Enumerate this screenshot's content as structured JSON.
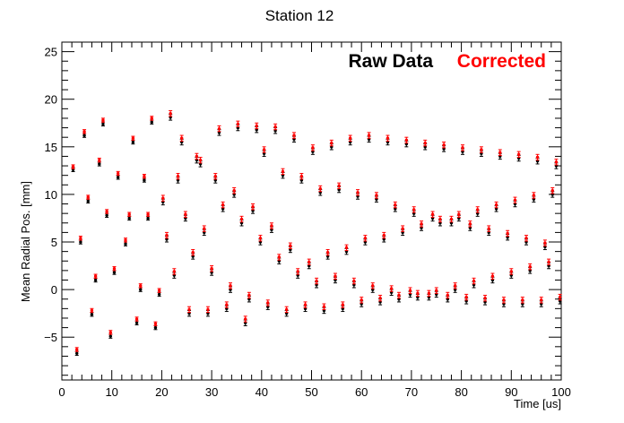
{
  "chart_data": {
    "type": "scatter",
    "title": "Station 12",
    "xlabel": "Time [us]",
    "ylabel": "Mean Radial Pos. [mm]",
    "xlim": [
      0,
      100
    ],
    "ylim": [
      -9.5,
      26
    ],
    "x_ticks": [
      0,
      10,
      20,
      30,
      40,
      50,
      60,
      70,
      80,
      90,
      100
    ],
    "y_ticks": [
      -5,
      0,
      5,
      10,
      15,
      20,
      25
    ],
    "grid": false,
    "legend_position": "top-right",
    "period_us": 1.5,
    "series": [
      {
        "name": "Raw Data",
        "color": "#000000",
        "points": [
          [
            2.25,
            12.6
          ],
          [
            3.0,
            -6.7
          ],
          [
            3.75,
            5.0
          ],
          [
            4.5,
            16.2
          ],
          [
            5.25,
            9.3
          ],
          [
            6.0,
            -2.6
          ],
          [
            6.75,
            1.0
          ],
          [
            7.5,
            13.2
          ],
          [
            8.25,
            17.4
          ],
          [
            9.0,
            7.8
          ],
          [
            9.75,
            -4.9
          ],
          [
            10.5,
            1.8
          ],
          [
            11.25,
            11.8
          ],
          [
            12.75,
            4.8
          ],
          [
            13.5,
            7.5
          ],
          [
            14.25,
            15.5
          ],
          [
            15.0,
            -3.5
          ],
          [
            15.75,
            0.0
          ],
          [
            16.5,
            11.5
          ],
          [
            17.25,
            7.5
          ],
          [
            18.0,
            17.6
          ],
          [
            18.75,
            -4.0
          ],
          [
            19.5,
            -0.5
          ],
          [
            20.25,
            9.2
          ],
          [
            21.0,
            5.3
          ],
          [
            21.75,
            18.1
          ],
          [
            22.5,
            1.5
          ],
          [
            23.25,
            11.5
          ],
          [
            24.0,
            15.5
          ],
          [
            24.75,
            7.5
          ],
          [
            25.5,
            -2.5
          ],
          [
            26.25,
            3.5
          ],
          [
            27.0,
            13.6
          ],
          [
            27.75,
            13.2
          ],
          [
            28.5,
            6.0
          ],
          [
            29.25,
            -2.5
          ],
          [
            30.0,
            1.8
          ],
          [
            30.75,
            11.5
          ],
          [
            31.5,
            16.5
          ],
          [
            32.25,
            8.5
          ],
          [
            33.0,
            -2.0
          ],
          [
            33.75,
            0.0
          ],
          [
            34.5,
            10.0
          ],
          [
            35.25,
            17.0
          ],
          [
            36.0,
            7.0
          ],
          [
            36.75,
            -3.5
          ],
          [
            37.5,
            -1.0
          ],
          [
            38.25,
            8.3
          ],
          [
            39.0,
            16.8
          ],
          [
            39.75,
            5.0
          ],
          [
            40.5,
            14.3
          ],
          [
            41.25,
            -1.8
          ],
          [
            42.0,
            6.3
          ],
          [
            42.75,
            16.7
          ],
          [
            43.5,
            3.0
          ],
          [
            44.25,
            12.0
          ],
          [
            45.0,
            -2.5
          ],
          [
            45.75,
            4.2
          ],
          [
            46.5,
            15.8
          ],
          [
            47.25,
            1.5
          ],
          [
            48.0,
            11.5
          ],
          [
            48.75,
            -2.0
          ],
          [
            49.5,
            2.5
          ],
          [
            50.25,
            14.5
          ],
          [
            51.0,
            0.5
          ],
          [
            51.75,
            10.2
          ],
          [
            52.5,
            -2.2
          ],
          [
            53.25,
            3.5
          ],
          [
            54.0,
            15.0
          ],
          [
            54.75,
            1.0
          ],
          [
            55.5,
            10.5
          ],
          [
            56.25,
            -2.0
          ],
          [
            57.0,
            4.0
          ],
          [
            57.75,
            15.5
          ],
          [
            58.5,
            0.5
          ],
          [
            59.25,
            9.8
          ],
          [
            60.0,
            -1.5
          ],
          [
            60.75,
            5.0
          ],
          [
            61.5,
            15.8
          ],
          [
            62.25,
            0.0
          ],
          [
            63.0,
            9.5
          ],
          [
            63.75,
            -1.3
          ],
          [
            64.5,
            5.3
          ],
          [
            65.25,
            15.5
          ],
          [
            66.0,
            -0.3
          ],
          [
            66.75,
            8.5
          ],
          [
            67.5,
            -1.0
          ],
          [
            68.25,
            6.0
          ],
          [
            69.0,
            15.3
          ],
          [
            69.75,
            -0.5
          ],
          [
            70.5,
            8.0
          ],
          [
            71.25,
            -0.8
          ],
          [
            72.0,
            6.5
          ],
          [
            72.75,
            15.0
          ],
          [
            73.5,
            -0.8
          ],
          [
            74.25,
            7.5
          ],
          [
            75.0,
            -0.5
          ],
          [
            75.75,
            7.0
          ],
          [
            76.5,
            14.8
          ],
          [
            77.25,
            -1.0
          ],
          [
            78.0,
            7.0
          ],
          [
            78.75,
            0.0
          ],
          [
            79.5,
            7.5
          ],
          [
            80.25,
            14.5
          ],
          [
            81.0,
            -1.2
          ],
          [
            81.75,
            6.5
          ],
          [
            82.5,
            0.5
          ],
          [
            83.25,
            8.0
          ],
          [
            84.0,
            14.3
          ],
          [
            84.75,
            -1.3
          ],
          [
            85.5,
            6.0
          ],
          [
            86.25,
            1.0
          ],
          [
            87.0,
            8.5
          ],
          [
            87.75,
            14.0
          ],
          [
            88.5,
            -1.5
          ],
          [
            89.25,
            5.5
          ],
          [
            90.0,
            1.5
          ],
          [
            90.75,
            9.0
          ],
          [
            91.5,
            13.8
          ],
          [
            92.25,
            -1.5
          ],
          [
            93.0,
            5.0
          ],
          [
            93.75,
            2.0
          ],
          [
            94.5,
            9.5
          ],
          [
            95.25,
            13.5
          ],
          [
            96.0,
            -1.5
          ],
          [
            96.75,
            4.5
          ],
          [
            97.5,
            2.5
          ],
          [
            98.25,
            10.0
          ],
          [
            99.0,
            13.0
          ],
          [
            99.75,
            -1.2
          ]
        ]
      },
      {
        "name": "Corrected",
        "color": "#ff0000",
        "points": [
          [
            2.25,
            12.9
          ],
          [
            3.0,
            -6.3
          ],
          [
            3.75,
            5.4
          ],
          [
            4.5,
            16.6
          ],
          [
            5.25,
            9.7
          ],
          [
            6.0,
            -2.2
          ],
          [
            6.75,
            1.4
          ],
          [
            7.5,
            13.6
          ],
          [
            8.25,
            17.8
          ],
          [
            9.0,
            8.2
          ],
          [
            9.75,
            -4.5
          ],
          [
            10.5,
            2.2
          ],
          [
            11.25,
            12.2
          ],
          [
            12.75,
            5.2
          ],
          [
            13.5,
            7.9
          ],
          [
            14.25,
            15.9
          ],
          [
            15.0,
            -3.1
          ],
          [
            15.75,
            0.4
          ],
          [
            16.5,
            11.9
          ],
          [
            17.25,
            7.9
          ],
          [
            18.0,
            18.0
          ],
          [
            18.75,
            -3.6
          ],
          [
            19.5,
            -0.1
          ],
          [
            20.25,
            9.6
          ],
          [
            21.0,
            5.7
          ],
          [
            21.75,
            18.5
          ],
          [
            22.5,
            1.9
          ],
          [
            23.25,
            11.9
          ],
          [
            24.0,
            15.9
          ],
          [
            24.75,
            7.9
          ],
          [
            25.5,
            -2.1
          ],
          [
            26.25,
            3.9
          ],
          [
            27.0,
            14.0
          ],
          [
            27.75,
            13.6
          ],
          [
            28.5,
            6.4
          ],
          [
            29.25,
            -2.1
          ],
          [
            30.0,
            2.2
          ],
          [
            30.75,
            11.9
          ],
          [
            31.5,
            16.9
          ],
          [
            32.25,
            8.9
          ],
          [
            33.0,
            -1.6
          ],
          [
            33.75,
            0.4
          ],
          [
            34.5,
            10.4
          ],
          [
            35.25,
            17.4
          ],
          [
            36.0,
            7.4
          ],
          [
            36.75,
            -3.1
          ],
          [
            37.5,
            -0.6
          ],
          [
            38.25,
            8.7
          ],
          [
            39.0,
            17.2
          ],
          [
            39.75,
            5.4
          ],
          [
            40.5,
            14.7
          ],
          [
            41.25,
            -1.4
          ],
          [
            42.0,
            6.7
          ],
          [
            42.75,
            17.1
          ],
          [
            43.5,
            3.4
          ],
          [
            44.25,
            12.4
          ],
          [
            45.0,
            -2.1
          ],
          [
            45.75,
            4.6
          ],
          [
            46.5,
            16.2
          ],
          [
            47.25,
            1.9
          ],
          [
            48.0,
            11.9
          ],
          [
            48.75,
            -1.6
          ],
          [
            49.5,
            2.9
          ],
          [
            50.25,
            14.9
          ],
          [
            51.0,
            0.9
          ],
          [
            51.75,
            10.6
          ],
          [
            52.5,
            -1.8
          ],
          [
            53.25,
            3.9
          ],
          [
            54.0,
            15.4
          ],
          [
            54.75,
            1.4
          ],
          [
            55.5,
            10.9
          ],
          [
            56.25,
            -1.6
          ],
          [
            57.0,
            4.4
          ],
          [
            57.75,
            15.9
          ],
          [
            58.5,
            0.9
          ],
          [
            59.25,
            10.2
          ],
          [
            60.0,
            -1.1
          ],
          [
            60.75,
            5.4
          ],
          [
            61.5,
            16.2
          ],
          [
            62.25,
            0.4
          ],
          [
            63.0,
            9.9
          ],
          [
            63.75,
            -0.9
          ],
          [
            64.5,
            5.7
          ],
          [
            65.25,
            15.9
          ],
          [
            66.0,
            0.1
          ],
          [
            66.75,
            8.9
          ],
          [
            67.5,
            -0.6
          ],
          [
            68.25,
            6.4
          ],
          [
            69.0,
            15.7
          ],
          [
            69.75,
            -0.1
          ],
          [
            70.5,
            8.4
          ],
          [
            71.25,
            -0.4
          ],
          [
            72.0,
            6.9
          ],
          [
            72.75,
            15.4
          ],
          [
            73.5,
            -0.4
          ],
          [
            74.25,
            7.9
          ],
          [
            75.0,
            -0.1
          ],
          [
            75.75,
            7.4
          ],
          [
            76.5,
            15.2
          ],
          [
            77.25,
            -0.6
          ],
          [
            78.0,
            7.4
          ],
          [
            78.75,
            0.4
          ],
          [
            79.5,
            7.9
          ],
          [
            80.25,
            14.9
          ],
          [
            81.0,
            -0.8
          ],
          [
            81.75,
            6.9
          ],
          [
            82.5,
            0.9
          ],
          [
            83.25,
            8.4
          ],
          [
            84.0,
            14.7
          ],
          [
            84.75,
            -0.9
          ],
          [
            85.5,
            6.4
          ],
          [
            86.25,
            1.4
          ],
          [
            87.0,
            8.9
          ],
          [
            87.75,
            14.4
          ],
          [
            88.5,
            -1.1
          ],
          [
            89.25,
            5.9
          ],
          [
            90.0,
            1.9
          ],
          [
            90.75,
            9.4
          ],
          [
            91.5,
            14.2
          ],
          [
            92.25,
            -1.1
          ],
          [
            93.0,
            5.4
          ],
          [
            93.75,
            2.4
          ],
          [
            94.5,
            9.9
          ],
          [
            95.25,
            13.9
          ],
          [
            96.0,
            -1.1
          ],
          [
            96.75,
            4.9
          ],
          [
            97.5,
            2.9
          ],
          [
            98.25,
            10.4
          ],
          [
            99.0,
            13.4
          ],
          [
            99.75,
            -0.8
          ]
        ]
      }
    ]
  }
}
